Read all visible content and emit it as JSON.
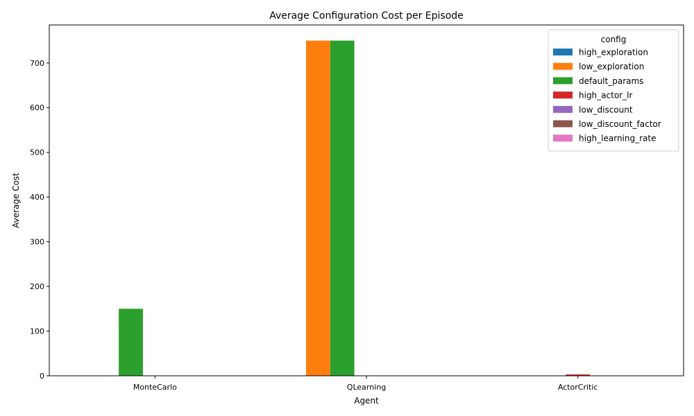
{
  "chart_data": {
    "type": "bar",
    "title": "Average Configuration Cost per Episode",
    "xlabel": "Agent",
    "ylabel": "Average Cost",
    "categories": [
      "MonteCarlo",
      "QLearning",
      "ActorCritic"
    ],
    "ylim": [
      0,
      785
    ],
    "yticks": [
      0,
      100,
      200,
      300,
      400,
      500,
      600,
      700
    ],
    "grid": false,
    "legend": {
      "title": "config",
      "placement": "top-right"
    },
    "series": [
      {
        "name": "high_exploration",
        "color": "#1f77b4",
        "values": [
          0,
          0,
          0
        ]
      },
      {
        "name": "low_exploration",
        "color": "#ff7f0e",
        "values": [
          0,
          750,
          0
        ]
      },
      {
        "name": "default_params",
        "color": "#2ca02c",
        "values": [
          150,
          750,
          0
        ]
      },
      {
        "name": "high_actor_lr",
        "color": "#d62728",
        "values": [
          0,
          0,
          3
        ]
      },
      {
        "name": "low_discount",
        "color": "#9467bd",
        "values": [
          0,
          0,
          0
        ]
      },
      {
        "name": "low_discount_factor",
        "color": "#8c564b",
        "values": [
          0,
          0,
          0
        ]
      },
      {
        "name": "high_learning_rate",
        "color": "#e377c2",
        "values": [
          0,
          0,
          0
        ]
      }
    ]
  }
}
